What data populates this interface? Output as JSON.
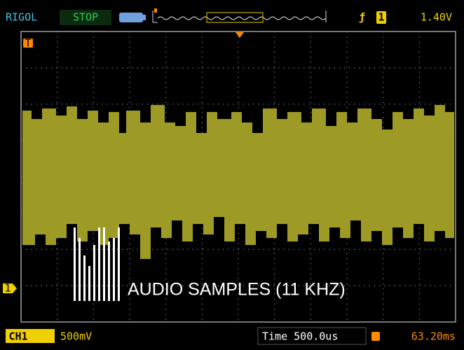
{
  "header": {
    "brand": "RIGOL",
    "status": "STOP",
    "trigger_channel": "1",
    "trigger_level": "1.40V"
  },
  "screen": {
    "trigger_marker": "T",
    "channel_marker": "1",
    "caption": "AUDIO SAMPLES (11 KHZ)"
  },
  "footer": {
    "channel": "CH1",
    "volts_per_div": "500mV",
    "timebase": "Time 500.0us",
    "trigger_offset": "63.20ms"
  }
}
